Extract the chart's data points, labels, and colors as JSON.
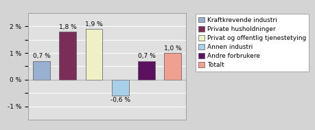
{
  "categories": [
    "Kraftkrevende industri",
    "Private husholdninger",
    "Privat og offentlig tjenestetying",
    "Annen industri",
    "Andre forbrukere",
    "Totalt"
  ],
  "values": [
    0.7,
    1.8,
    1.9,
    -0.6,
    0.7,
    1.0
  ],
  "bar_colors": [
    "#9ab0d0",
    "#7b2d5a",
    "#f0f0c8",
    "#a8d0e8",
    "#5c1060",
    "#f0a090"
  ],
  "legend_labels": [
    "Kraftkrevende industri",
    "Private husholdninger",
    "Privat og offentlig tjenestetying",
    "Annen industri",
    "Andre forbrukere",
    "Totalt"
  ],
  "legend_colors": [
    "#9ab0d0",
    "#7b2d5a",
    "#f0f0c8",
    "#a8d0e8",
    "#5c1060",
    "#f0a090"
  ],
  "ylim": [
    -1.5,
    2.5
  ],
  "yticks": [
    -1.0,
    -0.5,
    0.0,
    0.5,
    1.0,
    1.5,
    2.0
  ],
  "ytick_labels": [
    "-1 %",
    "",
    "0 %",
    "",
    "1 %",
    "",
    "2 %"
  ],
  "background_color": "#d4d4d4",
  "plot_bg_color": "#e0e0e0",
  "label_fontsize": 6.5,
  "legend_fontsize": 6.5,
  "bar_width": 0.65
}
